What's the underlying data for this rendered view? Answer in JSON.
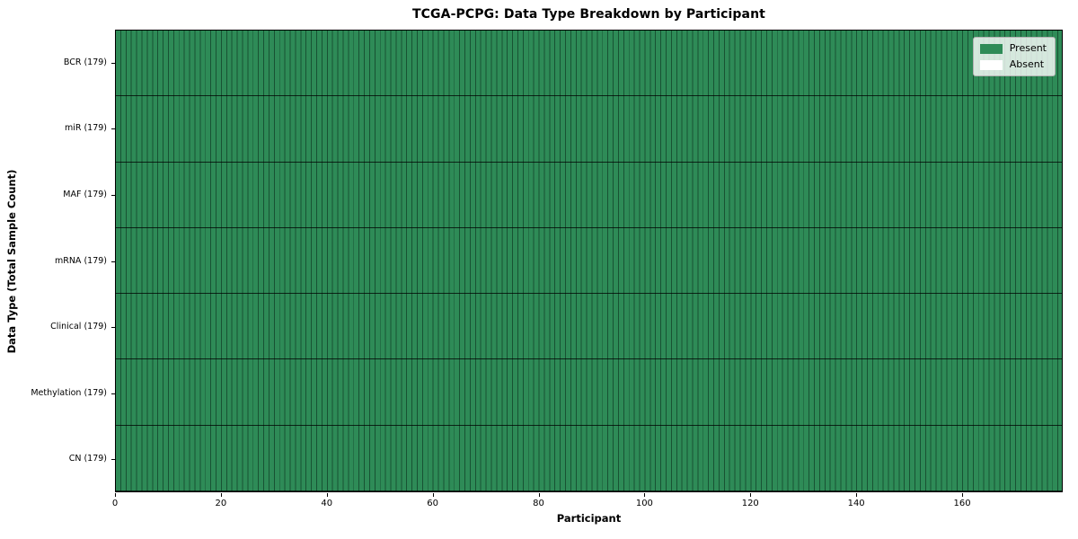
{
  "chart_data": {
    "type": "heatmap",
    "title": "TCGA-PCPG: Data Type Breakdown by Participant",
    "xlabel": "Participant",
    "ylabel": "Data Type (Total Sample Count)",
    "x_ticks": [
      0,
      20,
      40,
      60,
      80,
      100,
      120,
      140,
      160
    ],
    "x_range": [
      0,
      179
    ],
    "n_participants": 179,
    "rows": [
      {
        "label": "BCR (179)",
        "data_type": "BCR",
        "total_samples": 179,
        "present_count": 179,
        "absent_count": 0
      },
      {
        "label": "miR (179)",
        "data_type": "miR",
        "total_samples": 179,
        "present_count": 179,
        "absent_count": 0
      },
      {
        "label": "MAF (179)",
        "data_type": "MAF",
        "total_samples": 179,
        "present_count": 179,
        "absent_count": 0
      },
      {
        "label": "mRNA (179)",
        "data_type": "mRNA",
        "total_samples": 179,
        "present_count": 179,
        "absent_count": 0
      },
      {
        "label": "Clinical (179)",
        "data_type": "Clinical",
        "total_samples": 179,
        "present_count": 179,
        "absent_count": 0
      },
      {
        "label": "Methylation (179)",
        "data_type": "Methylation",
        "total_samples": 179,
        "present_count": 179,
        "absent_count": 0
      },
      {
        "label": "CN (179)",
        "data_type": "CN",
        "total_samples": 179,
        "present_count": 179,
        "absent_count": 0
      }
    ],
    "all_cells_present": true,
    "legend": [
      {
        "label": "Present",
        "color": "#2e8b57"
      },
      {
        "label": "Absent",
        "color": "#ffffff"
      }
    ],
    "legend_position": "upper right",
    "colors": {
      "present": "#2e8b57",
      "absent": "#ffffff",
      "cell_separator": "#123c26",
      "row_separator": "#000000",
      "plot_border": "#000000",
      "legend_border": "#b2b2b2"
    }
  }
}
